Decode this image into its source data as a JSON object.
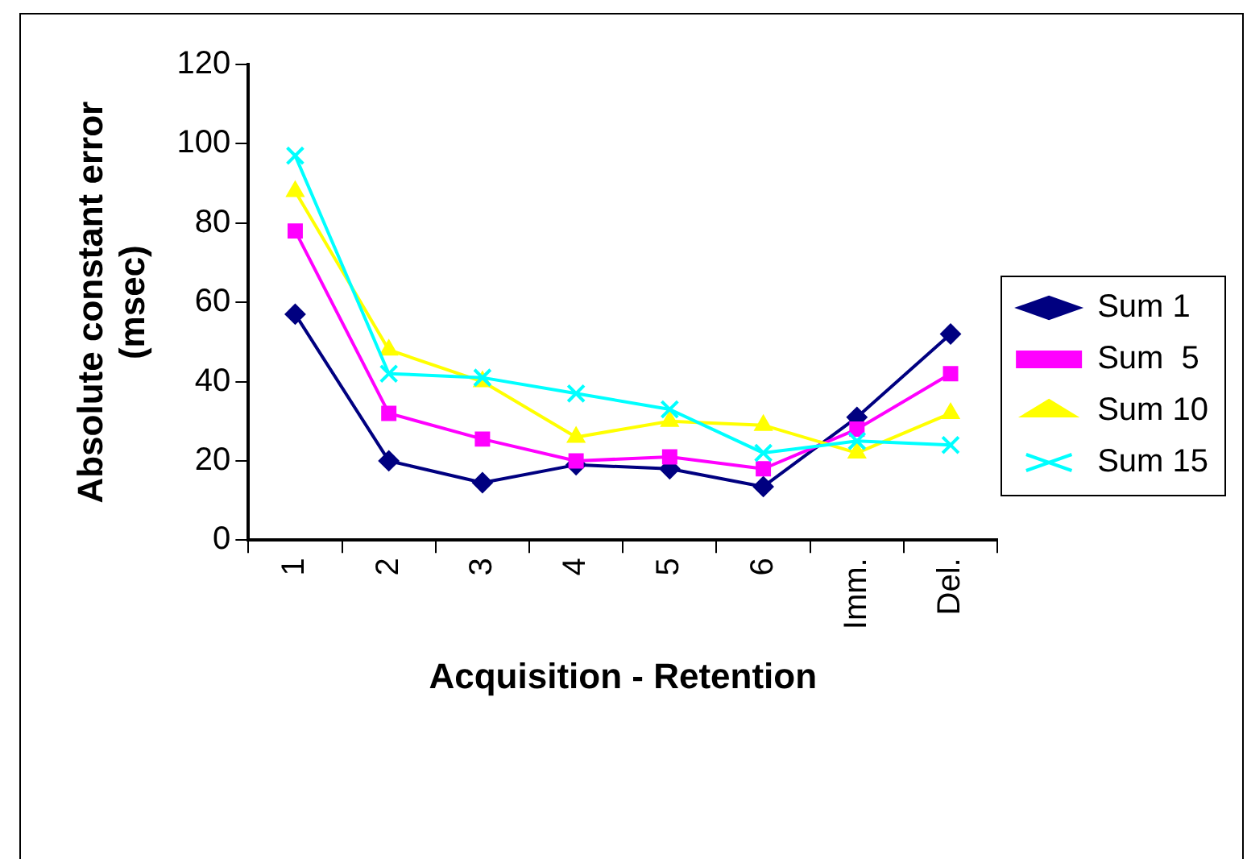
{
  "chart_data": {
    "type": "line",
    "xlabel": "Acquisition - Retention",
    "ylabel": "Absolute constant error (msec)",
    "categories": [
      "1",
      "2",
      "3",
      "4",
      "5",
      "6",
      "Imm.",
      "Del."
    ],
    "series": [
      {
        "name": "Sum 1",
        "color": "#000080",
        "marker": "diamond",
        "values": [
          57,
          20,
          14.5,
          19,
          18,
          13.5,
          31,
          52
        ]
      },
      {
        "name": "Sum  5",
        "color": "#ff00ff",
        "marker": "square",
        "values": [
          78,
          32,
          25.5,
          20,
          21,
          18,
          28,
          42
        ]
      },
      {
        "name": "Sum 10",
        "color": "#ffff00",
        "marker": "triangle",
        "values": [
          88,
          48,
          40,
          26,
          30,
          29,
          22,
          32
        ]
      },
      {
        "name": "Sum 15",
        "color": "#00ffff",
        "marker": "cross",
        "values": [
          97,
          42,
          41,
          37,
          33,
          22,
          25,
          24
        ]
      }
    ],
    "ylim": [
      0,
      120
    ],
    "yticks": [
      0,
      20,
      40,
      60,
      80,
      100,
      120
    ],
    "grid": false,
    "legend": "right"
  }
}
